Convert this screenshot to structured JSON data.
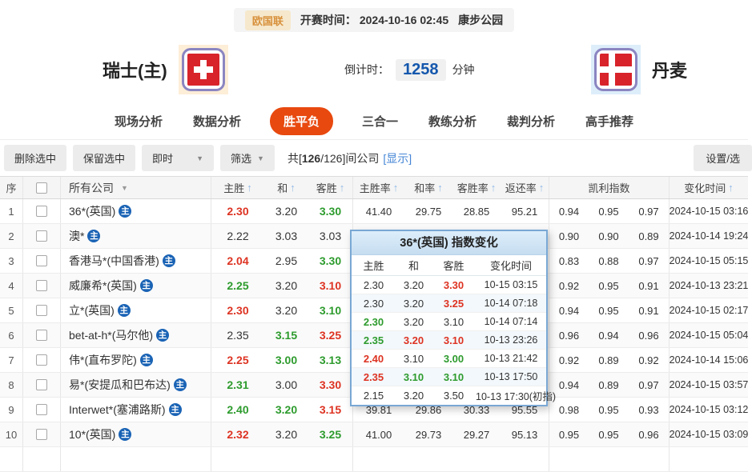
{
  "match_header": {
    "league": "欧国联",
    "start_time_label": "开赛时间：",
    "start_time": "2024-10-16 02:45",
    "venue": "康步公园",
    "home_team": "瑞士(主)",
    "away_team": "丹麦",
    "countdown_label": "倒计时：",
    "countdown_value": "1258",
    "countdown_unit": "分钟"
  },
  "tabs": {
    "items": [
      "现场分析",
      "数据分析",
      "胜平负",
      "三合一",
      "教练分析",
      "裁判分析",
      "高手推荐"
    ],
    "active_index": 2
  },
  "toolbar": {
    "delete_selected": "删除选中",
    "keep_selected": "保留选中",
    "instant_dropdown": "即时",
    "filter_dropdown": "筛选",
    "count_prefix": "共[",
    "count_selected": "126",
    "count_suffix": "/126]间公司",
    "show_link": "[显示]",
    "settings_button": "设置/选"
  },
  "icons": {
    "sort_asc": "↑",
    "dropdown": "▼"
  },
  "table": {
    "main_badge": "主",
    "headers": {
      "seq": "序",
      "company": "所有公司",
      "home": "主胜",
      "draw": "和",
      "away": "客胜",
      "home_rate": "主胜率",
      "draw_rate": "和率",
      "away_rate": "客胜率",
      "return_rate": "返还率",
      "kelly": "凯利指数",
      "change_time": "变化时间"
    },
    "rows": [
      {
        "seq": "1",
        "company": "36*(英国)",
        "odds": [
          [
            "2.30",
            "red"
          ],
          [
            "3.20",
            "black"
          ],
          [
            "3.30",
            "green"
          ]
        ],
        "rates": [
          "41.40",
          "29.75",
          "28.85",
          "95.21"
        ],
        "kelly": [
          "0.94",
          "0.95",
          "0.97"
        ],
        "time": "2024-10-15 03:16"
      },
      {
        "seq": "2",
        "company": "澳*",
        "odds": [
          [
            "2.22",
            "black"
          ],
          [
            "3.03",
            "black"
          ],
          [
            "3.03",
            "black"
          ]
        ],
        "rates": [
          "",
          "",
          "",
          ""
        ],
        "kelly": [
          "0.90",
          "0.90",
          "0.89"
        ],
        "time": "2024-10-14 19:24"
      },
      {
        "seq": "3",
        "company": "香港马*(中国香港)",
        "odds": [
          [
            "2.04",
            "red"
          ],
          [
            "2.95",
            "black"
          ],
          [
            "3.30",
            "green"
          ]
        ],
        "rates": [
          "",
          "",
          "",
          ""
        ],
        "kelly": [
          "0.83",
          "0.88",
          "0.97"
        ],
        "time": "2024-10-15 05:15"
      },
      {
        "seq": "4",
        "company": "威廉希*(英国)",
        "odds": [
          [
            "2.25",
            "green"
          ],
          [
            "3.20",
            "black"
          ],
          [
            "3.10",
            "red"
          ]
        ],
        "rates": [
          "",
          "",
          "",
          ""
        ],
        "kelly": [
          "0.92",
          "0.95",
          "0.91"
        ],
        "time": "2024-10-13 23:21"
      },
      {
        "seq": "5",
        "company": "立*(英国)",
        "odds": [
          [
            "2.30",
            "red"
          ],
          [
            "3.20",
            "black"
          ],
          [
            "3.10",
            "green"
          ]
        ],
        "rates": [
          "",
          "",
          "",
          ""
        ],
        "kelly": [
          "0.94",
          "0.95",
          "0.91"
        ],
        "time": "2024-10-15 02:17"
      },
      {
        "seq": "6",
        "company": "bet-at-h*(马尔他)",
        "odds": [
          [
            "2.35",
            "black"
          ],
          [
            "3.15",
            "green"
          ],
          [
            "3.25",
            "red"
          ]
        ],
        "rates": [
          "",
          "",
          "",
          ""
        ],
        "kelly": [
          "0.96",
          "0.94",
          "0.96"
        ],
        "time": "2024-10-15 05:04"
      },
      {
        "seq": "7",
        "company": "伟*(直布罗陀)",
        "odds": [
          [
            "2.25",
            "red"
          ],
          [
            "3.00",
            "green"
          ],
          [
            "3.13",
            "green"
          ]
        ],
        "rates": [
          "",
          "",
          "",
          ""
        ],
        "kelly": [
          "0.92",
          "0.89",
          "0.92"
        ],
        "time": "2024-10-14 15:06"
      },
      {
        "seq": "8",
        "company": "易*(安提瓜和巴布达)",
        "odds": [
          [
            "2.31",
            "green"
          ],
          [
            "3.00",
            "black"
          ],
          [
            "3.30",
            "red"
          ]
        ],
        "rates": [
          "",
          "",
          "",
          ""
        ],
        "kelly": [
          "0.94",
          "0.89",
          "0.97"
        ],
        "time": "2024-10-15 03:57"
      },
      {
        "seq": "9",
        "company": "Interwet*(塞浦路斯)",
        "odds": [
          [
            "2.40",
            "green"
          ],
          [
            "3.20",
            "green"
          ],
          [
            "3.15",
            "red"
          ]
        ],
        "rates": [
          "39.81",
          "29.86",
          "30.33",
          "95.55"
        ],
        "kelly": [
          "0.98",
          "0.95",
          "0.93"
        ],
        "time": "2024-10-15 03:12"
      },
      {
        "seq": "10",
        "company": "10*(英国)",
        "odds": [
          [
            "2.32",
            "red"
          ],
          [
            "3.20",
            "black"
          ],
          [
            "3.25",
            "green"
          ]
        ],
        "rates": [
          "41.00",
          "29.73",
          "29.27",
          "95.13"
        ],
        "kelly": [
          "0.95",
          "0.95",
          "0.96"
        ],
        "time": "2024-10-15 03:09"
      }
    ]
  },
  "popup": {
    "title": "36*(英国) 指数变化",
    "headers": [
      "主胜",
      "和",
      "客胜",
      "变化时间"
    ],
    "rows": [
      {
        "values": [
          [
            "2.30",
            "black"
          ],
          [
            "3.20",
            "black"
          ],
          [
            "3.30",
            "red"
          ]
        ],
        "time": "10-15 03:15"
      },
      {
        "values": [
          [
            "2.30",
            "black"
          ],
          [
            "3.20",
            "black"
          ],
          [
            "3.25",
            "red"
          ]
        ],
        "time": "10-14 07:18"
      },
      {
        "values": [
          [
            "2.30",
            "green"
          ],
          [
            "3.20",
            "black"
          ],
          [
            "3.10",
            "black"
          ]
        ],
        "time": "10-14 07:14"
      },
      {
        "values": [
          [
            "2.35",
            "green"
          ],
          [
            "3.20",
            "red"
          ],
          [
            "3.10",
            "red"
          ]
        ],
        "time": "10-13 23:26"
      },
      {
        "values": [
          [
            "2.40",
            "red"
          ],
          [
            "3.10",
            "black"
          ],
          [
            "3.00",
            "green"
          ]
        ],
        "time": "10-13 21:42"
      },
      {
        "values": [
          [
            "2.35",
            "red"
          ],
          [
            "3.10",
            "green"
          ],
          [
            "3.10",
            "green"
          ]
        ],
        "time": "10-13 17:50"
      },
      {
        "values": [
          [
            "2.15",
            "black"
          ],
          [
            "3.20",
            "black"
          ],
          [
            "3.50",
            "black"
          ]
        ],
        "time": "10-13 17:30(初指)"
      }
    ]
  },
  "colors": {
    "odds_up_red": "#dd3322",
    "odds_down_green": "#2d9b2d",
    "active_tab_orange": "#e8490f",
    "countdown_blue": "#1457ad",
    "link_blue": "#4586d6",
    "badge_blue": "#1a63b5",
    "league_orange": "#d8913c",
    "popup_border_blue": "#79a8d4"
  }
}
